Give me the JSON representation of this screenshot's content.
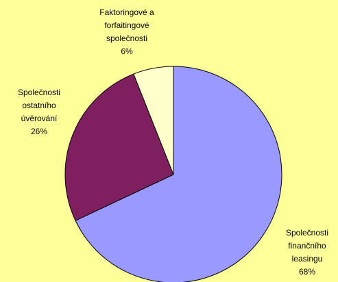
{
  "chart_data": {
    "type": "pie",
    "categories": [
      "Společnosti finančního leasingu",
      "Společnosti ostatního úvěrování",
      "Faktoringové a forfaitingové společnosti"
    ],
    "values": [
      68,
      26,
      6
    ],
    "value_labels": [
      "68%",
      "26%",
      "6%"
    ],
    "colors": [
      "#9999ff",
      "#7f1f5f",
      "#ffffcc"
    ]
  }
}
